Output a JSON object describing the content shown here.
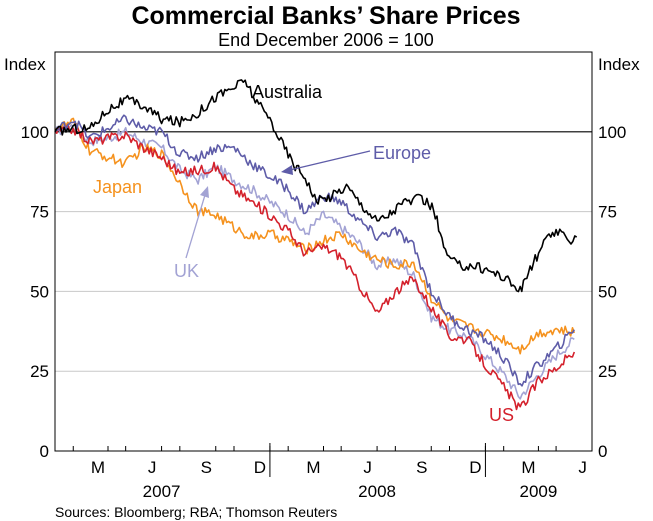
{
  "chart_data": {
    "type": "line",
    "title": "Commercial Banks’ Share Prices",
    "subtitle": "End December 2006 = 100",
    "ylabel_left": "Index",
    "ylabel_right": "Index",
    "ylim": [
      0,
      125
    ],
    "yticks": [
      0,
      25,
      50,
      75,
      100
    ],
    "reference_line": 100,
    "xlim": [
      "2007-01-01",
      "2009-07-01"
    ],
    "month_ticks": [
      {
        "label": "M",
        "date": "2007-03-15"
      },
      {
        "label": "J",
        "date": "2007-06-15"
      },
      {
        "label": "S",
        "date": "2007-09-15"
      },
      {
        "label": "D",
        "date": "2007-12-15"
      },
      {
        "label": "M",
        "date": "2008-03-15"
      },
      {
        "label": "J",
        "date": "2008-06-15"
      },
      {
        "label": "S",
        "date": "2008-09-15"
      },
      {
        "label": "D",
        "date": "2008-12-15"
      },
      {
        "label": "M",
        "date": "2009-03-15"
      },
      {
        "label": "J",
        "date": "2009-06-15"
      }
    ],
    "month_boundaries": [
      "2007-02-01",
      "2007-04-01",
      "2007-05-01",
      "2007-07-01",
      "2007-08-01",
      "2007-10-01",
      "2007-11-01",
      "2008-01-01",
      "2008-02-01",
      "2008-04-01",
      "2008-05-01",
      "2008-07-01",
      "2008-08-01",
      "2008-10-01",
      "2008-11-01",
      "2009-01-01",
      "2009-02-01",
      "2009-04-01",
      "2009-05-01",
      "2009-07-01"
    ],
    "years": [
      {
        "label": "2007",
        "date": "2007-07-01"
      },
      {
        "label": "2008",
        "date": "2008-07-01"
      },
      {
        "label": "2009",
        "date": "2009-04-01"
      }
    ],
    "series": [
      {
        "name": "Australia",
        "color": "#000000",
        "points": [
          [
            "2007-01-01",
            100
          ],
          [
            "2007-02-01",
            101
          ],
          [
            "2007-03-01",
            101
          ],
          [
            "2007-04-01",
            107
          ],
          [
            "2007-05-01",
            110
          ],
          [
            "2007-06-01",
            108
          ],
          [
            "2007-07-01",
            104
          ],
          [
            "2007-08-01",
            103
          ],
          [
            "2007-09-01",
            106
          ],
          [
            "2007-10-01",
            111
          ],
          [
            "2007-11-01",
            114
          ],
          [
            "2007-11-20",
            116
          ],
          [
            "2007-12-10",
            109
          ],
          [
            "2008-01-01",
            104
          ],
          [
            "2008-01-20",
            97
          ],
          [
            "2008-02-10",
            90
          ],
          [
            "2008-03-01",
            86
          ],
          [
            "2008-03-20",
            78
          ],
          [
            "2008-04-15",
            80
          ],
          [
            "2008-05-10",
            83
          ],
          [
            "2008-06-01",
            78
          ],
          [
            "2008-07-01",
            72
          ],
          [
            "2008-07-20",
            74
          ],
          [
            "2008-08-15",
            78
          ],
          [
            "2008-09-15",
            79
          ],
          [
            "2008-10-05",
            76
          ],
          [
            "2008-10-25",
            62
          ],
          [
            "2008-11-15",
            58
          ],
          [
            "2008-12-15",
            58
          ],
          [
            "2009-01-15",
            56
          ],
          [
            "2009-02-05",
            54
          ],
          [
            "2009-03-01",
            50
          ],
          [
            "2009-03-15",
            56
          ],
          [
            "2009-04-10",
            65
          ],
          [
            "2009-05-01",
            69
          ],
          [
            "2009-05-20",
            66
          ],
          [
            "2009-06-05",
            67
          ]
        ]
      },
      {
        "name": "Europe",
        "color": "#5e5ca8",
        "points": [
          [
            "2007-01-01",
            100
          ],
          [
            "2007-02-01",
            104
          ],
          [
            "2007-03-01",
            98
          ],
          [
            "2007-04-01",
            101
          ],
          [
            "2007-05-01",
            104
          ],
          [
            "2007-06-01",
            101
          ],
          [
            "2007-07-01",
            100
          ],
          [
            "2007-08-01",
            93
          ],
          [
            "2007-09-01",
            92
          ],
          [
            "2007-10-01",
            95
          ],
          [
            "2007-11-01",
            95
          ],
          [
            "2007-12-01",
            90
          ],
          [
            "2008-01-01",
            86
          ],
          [
            "2008-02-01",
            82
          ],
          [
            "2008-03-01",
            75
          ],
          [
            "2008-04-01",
            80
          ],
          [
            "2008-05-01",
            78
          ],
          [
            "2008-06-01",
            72
          ],
          [
            "2008-07-01",
            67
          ],
          [
            "2008-08-01",
            69
          ],
          [
            "2008-09-01",
            64
          ],
          [
            "2008-10-01",
            50
          ],
          [
            "2008-11-01",
            42
          ],
          [
            "2008-12-01",
            38
          ],
          [
            "2009-01-01",
            35
          ],
          [
            "2009-02-01",
            29
          ],
          [
            "2009-03-01",
            21
          ],
          [
            "2009-04-01",
            27
          ],
          [
            "2009-05-01",
            32
          ],
          [
            "2009-06-01",
            38
          ]
        ]
      },
      {
        "name": "Japan",
        "color": "#f5921e",
        "points": [
          [
            "2007-01-01",
            101
          ],
          [
            "2007-02-01",
            103
          ],
          [
            "2007-03-01",
            94
          ],
          [
            "2007-04-01",
            92
          ],
          [
            "2007-05-01",
            90
          ],
          [
            "2007-06-01",
            95
          ],
          [
            "2007-07-01",
            93
          ],
          [
            "2007-08-01",
            84
          ],
          [
            "2007-09-01",
            75
          ],
          [
            "2007-10-01",
            74
          ],
          [
            "2007-11-01",
            70
          ],
          [
            "2007-12-01",
            67
          ],
          [
            "2008-01-01",
            68
          ],
          [
            "2008-02-01",
            66
          ],
          [
            "2008-03-01",
            63
          ],
          [
            "2008-04-01",
            66
          ],
          [
            "2008-05-01",
            68
          ],
          [
            "2008-06-01",
            63
          ],
          [
            "2008-07-01",
            60
          ],
          [
            "2008-08-01",
            58
          ],
          [
            "2008-09-01",
            59
          ],
          [
            "2008-10-01",
            48
          ],
          [
            "2008-11-01",
            41
          ],
          [
            "2008-12-01",
            39
          ],
          [
            "2009-01-01",
            37
          ],
          [
            "2009-02-01",
            35
          ],
          [
            "2009-03-01",
            32
          ],
          [
            "2009-04-01",
            37
          ],
          [
            "2009-05-01",
            38
          ],
          [
            "2009-06-01",
            37
          ]
        ]
      },
      {
        "name": "UK",
        "color": "#a3a3d4",
        "points": [
          [
            "2007-01-01",
            100
          ],
          [
            "2007-02-01",
            102
          ],
          [
            "2007-03-01",
            97
          ],
          [
            "2007-04-01",
            98
          ],
          [
            "2007-05-01",
            100
          ],
          [
            "2007-06-01",
            97
          ],
          [
            "2007-07-01",
            95
          ],
          [
            "2007-08-01",
            88
          ],
          [
            "2007-09-01",
            85
          ],
          [
            "2007-10-01",
            89
          ],
          [
            "2007-11-01",
            85
          ],
          [
            "2007-12-01",
            82
          ],
          [
            "2008-01-01",
            78
          ],
          [
            "2008-02-01",
            74
          ],
          [
            "2008-03-01",
            68
          ],
          [
            "2008-04-01",
            74
          ],
          [
            "2008-05-01",
            70
          ],
          [
            "2008-06-01",
            65
          ],
          [
            "2008-07-01",
            58
          ],
          [
            "2008-08-01",
            60
          ],
          [
            "2008-09-01",
            55
          ],
          [
            "2008-10-01",
            42
          ],
          [
            "2008-11-01",
            38
          ],
          [
            "2008-12-01",
            36
          ],
          [
            "2009-01-01",
            30
          ],
          [
            "2009-02-01",
            24
          ],
          [
            "2009-03-01",
            17
          ],
          [
            "2009-04-01",
            24
          ],
          [
            "2009-05-01",
            30
          ],
          [
            "2009-06-01",
            35
          ]
        ]
      },
      {
        "name": "US",
        "color": "#d4212c",
        "points": [
          [
            "2007-01-01",
            100
          ],
          [
            "2007-02-01",
            101
          ],
          [
            "2007-03-01",
            97
          ],
          [
            "2007-04-01",
            98
          ],
          [
            "2007-05-01",
            99
          ],
          [
            "2007-06-01",
            95
          ],
          [
            "2007-07-01",
            92
          ],
          [
            "2007-08-01",
            87
          ],
          [
            "2007-09-01",
            88
          ],
          [
            "2007-10-01",
            89
          ],
          [
            "2007-11-01",
            82
          ],
          [
            "2007-12-01",
            78
          ],
          [
            "2008-01-01",
            74
          ],
          [
            "2008-02-01",
            69
          ],
          [
            "2008-03-01",
            62
          ],
          [
            "2008-04-01",
            64
          ],
          [
            "2008-05-01",
            61
          ],
          [
            "2008-06-01",
            52
          ],
          [
            "2008-07-01",
            43
          ],
          [
            "2008-08-01",
            50
          ],
          [
            "2008-09-01",
            54
          ],
          [
            "2008-10-01",
            45
          ],
          [
            "2008-11-01",
            36
          ],
          [
            "2008-12-01",
            35
          ],
          [
            "2009-01-01",
            27
          ],
          [
            "2009-02-01",
            20
          ],
          [
            "2009-03-01",
            13
          ],
          [
            "2009-04-01",
            22
          ],
          [
            "2009-05-01",
            26
          ],
          [
            "2009-06-01",
            31
          ]
        ]
      }
    ],
    "labels": [
      {
        "text": "Australia",
        "color": "#000000"
      },
      {
        "text": "Europe",
        "color": "#5e5ca8"
      },
      {
        "text": "Japan",
        "color": "#f5921e"
      },
      {
        "text": "UK",
        "color": "#a3a3d4"
      },
      {
        "text": "US",
        "color": "#d4212c"
      }
    ],
    "source": "Sources: Bloomberg; RBA; Thomson Reuters"
  }
}
